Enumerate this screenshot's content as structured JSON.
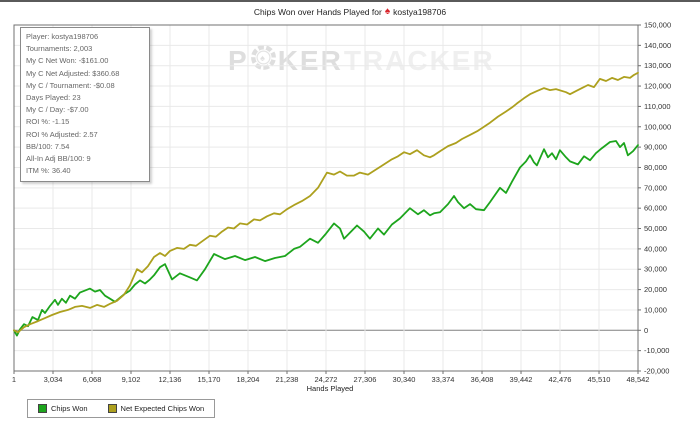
{
  "title": {
    "prefix": "Chips Won over Hands Played for",
    "player": "kostya198706"
  },
  "stats_panel": {
    "items": [
      {
        "label": "Player",
        "value": "kostya198706"
      },
      {
        "label": "Tournaments",
        "value": "2,003"
      },
      {
        "label": "My C Net Won",
        "value": "-$161.00"
      },
      {
        "label": "My C Net Adjusted",
        "value": "$360.68"
      },
      {
        "label": "My C / Tournament",
        "value": "-$0.08"
      },
      {
        "label": "Days Played",
        "value": "23"
      },
      {
        "label": "My C / Day",
        "value": "-$7.00"
      },
      {
        "label": "ROI %",
        "value": "-1.15"
      },
      {
        "label": "ROI % Adjusted",
        "value": "2.57"
      },
      {
        "label": "BB/100",
        "value": "7.54"
      },
      {
        "label": "All-In Adj BB/100",
        "value": "9"
      },
      {
        "label": "ITM %",
        "value": "36.40"
      }
    ]
  },
  "watermark": {
    "p": "P",
    "ker": "KER",
    "tracker": "TRACKER"
  },
  "colors": {
    "axis": "#707070",
    "grid": "#e9e9e9",
    "zero_line": "#808080",
    "tick_label": "#333333",
    "spade": "#d8232a"
  },
  "chart_data": {
    "type": "line",
    "title": "Chips Won over Hands Played for kostya198706",
    "xlabel": "Hands Played",
    "ylabel": "",
    "xlim": [
      1,
      48542
    ],
    "ylim": [
      -20000,
      150000
    ],
    "grid": true,
    "legend_position": "bottom-left",
    "x_ticks": [
      {
        "v": 1,
        "label": "1"
      },
      {
        "v": 3034,
        "label": "3,034"
      },
      {
        "v": 6068,
        "label": "6,068"
      },
      {
        "v": 9102,
        "label": "9,102"
      },
      {
        "v": 12136,
        "label": "12,136"
      },
      {
        "v": 15170,
        "label": "15,170"
      },
      {
        "v": 18204,
        "label": "18,204"
      },
      {
        "v": 21238,
        "label": "21,238"
      },
      {
        "v": 24272,
        "label": "24,272"
      },
      {
        "v": 27306,
        "label": "27,306"
      },
      {
        "v": 30340,
        "label": "30,340"
      },
      {
        "v": 33374,
        "label": "33,374"
      },
      {
        "v": 36408,
        "label": "36,408"
      },
      {
        "v": 39442,
        "label": "39,442"
      },
      {
        "v": 42476,
        "label": "42,476"
      },
      {
        "v": 45510,
        "label": "45,510"
      },
      {
        "v": 48542,
        "label": "48,542"
      }
    ],
    "y_ticks": [
      {
        "v": 150000,
        "label": "150,000"
      },
      {
        "v": 140000,
        "label": "140,000"
      },
      {
        "v": 130000,
        "label": "130,000"
      },
      {
        "v": 120000,
        "label": "120,000"
      },
      {
        "v": 110000,
        "label": "110,000"
      },
      {
        "v": 100000,
        "label": "100,000"
      },
      {
        "v": 90000,
        "label": "90,000"
      },
      {
        "v": 80000,
        "label": "80,000"
      },
      {
        "v": 70000,
        "label": "70,000"
      },
      {
        "v": 60000,
        "label": "60,000"
      },
      {
        "v": 50000,
        "label": "50,000"
      },
      {
        "v": 40000,
        "label": "40,000"
      },
      {
        "v": 30000,
        "label": "30,000"
      },
      {
        "v": 20000,
        "label": "20,000"
      },
      {
        "v": 10000,
        "label": "10,000"
      },
      {
        "v": 0,
        "label": "0"
      },
      {
        "v": -10000,
        "label": "-10,000"
      },
      {
        "v": -20000,
        "label": "-20,000"
      }
    ],
    "series": [
      {
        "name": "Chips Won",
        "color": "#1da51d",
        "points": [
          [
            1,
            0
          ],
          [
            230,
            -2600
          ],
          [
            470,
            500
          ],
          [
            780,
            3000
          ],
          [
            1090,
            2000
          ],
          [
            1430,
            6500
          ],
          [
            1870,
            5000
          ],
          [
            2180,
            10000
          ],
          [
            2410,
            8500
          ],
          [
            2800,
            12000
          ],
          [
            3190,
            15000
          ],
          [
            3420,
            12500
          ],
          [
            3730,
            15500
          ],
          [
            4040,
            13500
          ],
          [
            4360,
            17000
          ],
          [
            4750,
            15500
          ],
          [
            5130,
            18500
          ],
          [
            5910,
            20500
          ],
          [
            6300,
            19000
          ],
          [
            6690,
            19800
          ],
          [
            7080,
            17000
          ],
          [
            7470,
            15500
          ],
          [
            7860,
            14000
          ],
          [
            8250,
            16000
          ],
          [
            8630,
            18000
          ],
          [
            9020,
            19500
          ],
          [
            9410,
            22500
          ],
          [
            9800,
            24500
          ],
          [
            10190,
            23000
          ],
          [
            10580,
            25000
          ],
          [
            10890,
            27000
          ],
          [
            11360,
            31000
          ],
          [
            11750,
            32500
          ],
          [
            12290,
            25000
          ],
          [
            12910,
            28000
          ],
          [
            13690,
            26000
          ],
          [
            14240,
            24500
          ],
          [
            14860,
            30000
          ],
          [
            15560,
            37500
          ],
          [
            16410,
            35000
          ],
          [
            17190,
            36500
          ],
          [
            17970,
            34500
          ],
          [
            18750,
            36000
          ],
          [
            19530,
            34000
          ],
          [
            20300,
            35500
          ],
          [
            21080,
            36500
          ],
          [
            21780,
            40000
          ],
          [
            22250,
            41000
          ],
          [
            23030,
            45000
          ],
          [
            23650,
            43000
          ],
          [
            24270,
            47500
          ],
          [
            24890,
            52500
          ],
          [
            25360,
            50000
          ],
          [
            25670,
            45000
          ],
          [
            26140,
            48000
          ],
          [
            26680,
            51500
          ],
          [
            27230,
            48500
          ],
          [
            27690,
            45000
          ],
          [
            28320,
            50000
          ],
          [
            28780,
            47000
          ],
          [
            29400,
            52000
          ],
          [
            30030,
            55000
          ],
          [
            30800,
            60000
          ],
          [
            31430,
            57000
          ],
          [
            31890,
            59000
          ],
          [
            32360,
            56500
          ],
          [
            32670,
            57500
          ],
          [
            33140,
            58000
          ],
          [
            33760,
            62000
          ],
          [
            34230,
            66000
          ],
          [
            34540,
            63000
          ],
          [
            35010,
            60000
          ],
          [
            35470,
            62000
          ],
          [
            35940,
            59500
          ],
          [
            36560,
            59000
          ],
          [
            37030,
            63000
          ],
          [
            37810,
            70000
          ],
          [
            38270,
            67500
          ],
          [
            38740,
            73000
          ],
          [
            39360,
            80000
          ],
          [
            39830,
            83000
          ],
          [
            40140,
            86000
          ],
          [
            40450,
            82500
          ],
          [
            40680,
            81000
          ],
          [
            41230,
            89000
          ],
          [
            41540,
            85000
          ],
          [
            41850,
            87000
          ],
          [
            42160,
            84000
          ],
          [
            42470,
            88500
          ],
          [
            42940,
            85000
          ],
          [
            43250,
            83000
          ],
          [
            43870,
            81500
          ],
          [
            44340,
            85500
          ],
          [
            44810,
            83500
          ],
          [
            45270,
            87000
          ],
          [
            45740,
            89500
          ],
          [
            46360,
            92500
          ],
          [
            46830,
            93000
          ],
          [
            47140,
            90000
          ],
          [
            47450,
            92000
          ],
          [
            47760,
            86000
          ],
          [
            48150,
            88000
          ],
          [
            48542,
            91000
          ]
        ]
      },
      {
        "name": "Net Expected Chips Won",
        "color": "#ada01e",
        "points": [
          [
            1,
            0
          ],
          [
            310,
            -1000
          ],
          [
            780,
            1500
          ],
          [
            1250,
            3000
          ],
          [
            1870,
            4500
          ],
          [
            2410,
            6000
          ],
          [
            2960,
            7500
          ],
          [
            3580,
            9000
          ],
          [
            4200,
            10000
          ],
          [
            4750,
            11500
          ],
          [
            5290,
            12000
          ],
          [
            5910,
            11000
          ],
          [
            6460,
            12500
          ],
          [
            7000,
            11500
          ],
          [
            7470,
            13000
          ],
          [
            8010,
            14500
          ],
          [
            8560,
            17500
          ],
          [
            9020,
            22000
          ],
          [
            9570,
            30000
          ],
          [
            9960,
            28500
          ],
          [
            10420,
            31500
          ],
          [
            10890,
            36000
          ],
          [
            11360,
            38000
          ],
          [
            11750,
            36500
          ],
          [
            12140,
            39000
          ],
          [
            12680,
            40500
          ],
          [
            13220,
            40000
          ],
          [
            13690,
            42000
          ],
          [
            14160,
            41500
          ],
          [
            14700,
            44000
          ],
          [
            15250,
            46500
          ],
          [
            15710,
            46000
          ],
          [
            16180,
            48500
          ],
          [
            16650,
            50500
          ],
          [
            17110,
            50000
          ],
          [
            17580,
            52500
          ],
          [
            18130,
            52000
          ],
          [
            18670,
            54500
          ],
          [
            19140,
            54000
          ],
          [
            19680,
            56000
          ],
          [
            20230,
            57500
          ],
          [
            20690,
            57000
          ],
          [
            21240,
            59500
          ],
          [
            21780,
            61500
          ],
          [
            22400,
            63500
          ],
          [
            23030,
            66000
          ],
          [
            23650,
            70000
          ],
          [
            24350,
            77500
          ],
          [
            24890,
            76500
          ],
          [
            25360,
            78000
          ],
          [
            25900,
            76000
          ],
          [
            26450,
            76000
          ],
          [
            26910,
            77500
          ],
          [
            27540,
            76500
          ],
          [
            28160,
            79000
          ],
          [
            28780,
            81500
          ],
          [
            29400,
            84000
          ],
          [
            29870,
            85500
          ],
          [
            30340,
            87500
          ],
          [
            30800,
            86500
          ],
          [
            31350,
            88500
          ],
          [
            31890,
            86000
          ],
          [
            32360,
            85000
          ],
          [
            32670,
            86000
          ],
          [
            33140,
            88000
          ],
          [
            33760,
            90500
          ],
          [
            34380,
            92000
          ],
          [
            34850,
            94000
          ],
          [
            35470,
            96000
          ],
          [
            36090,
            98000
          ],
          [
            36560,
            100000
          ],
          [
            37030,
            102000
          ],
          [
            37650,
            105000
          ],
          [
            38270,
            107500
          ],
          [
            38740,
            109500
          ],
          [
            39130,
            111500
          ],
          [
            39670,
            114000
          ],
          [
            40140,
            116000
          ],
          [
            40680,
            117500
          ],
          [
            41230,
            119000
          ],
          [
            41700,
            118000
          ],
          [
            42160,
            118500
          ],
          [
            42940,
            117000
          ],
          [
            43250,
            116000
          ],
          [
            43720,
            117500
          ],
          [
            44180,
            119000
          ],
          [
            44650,
            120500
          ],
          [
            45120,
            119500
          ],
          [
            45580,
            123500
          ],
          [
            46050,
            122500
          ],
          [
            46520,
            124000
          ],
          [
            46980,
            123000
          ],
          [
            47450,
            124500
          ],
          [
            47920,
            124000
          ],
          [
            48230,
            125500
          ],
          [
            48542,
            126500
          ]
        ]
      }
    ]
  }
}
